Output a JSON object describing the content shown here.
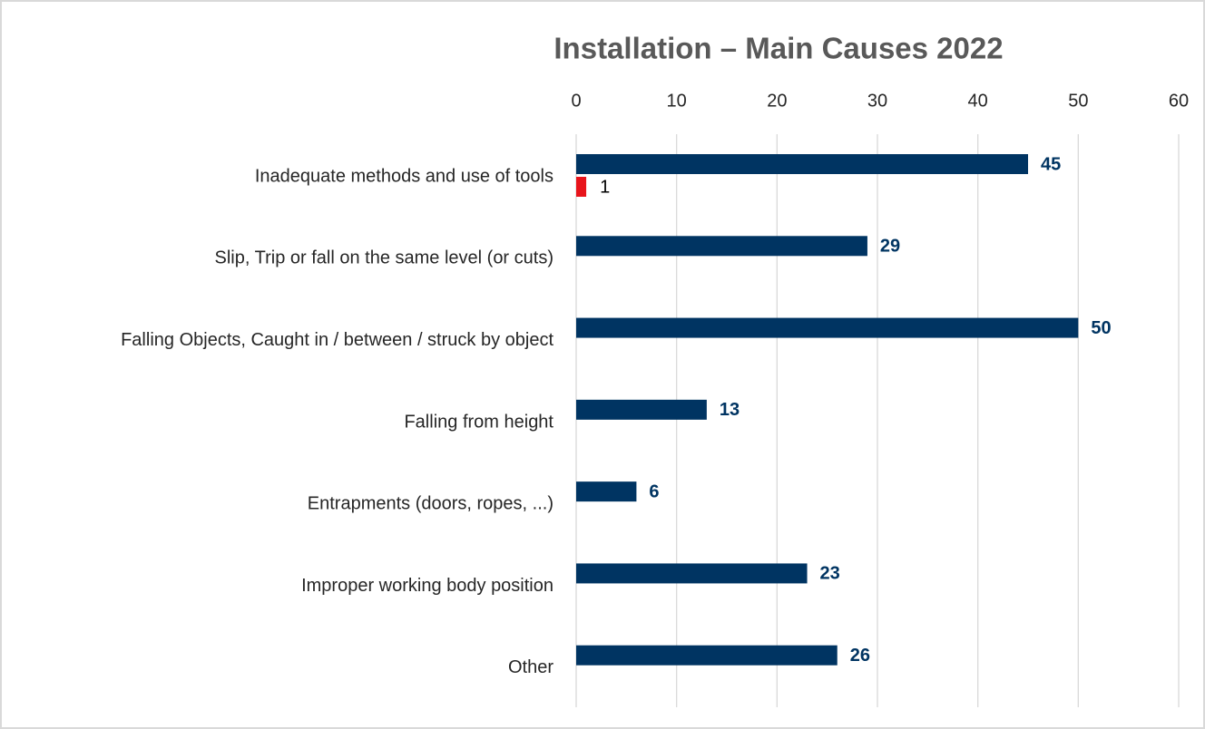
{
  "chart_data": {
    "type": "hbar",
    "title": "Installation – Main Causes 2022",
    "categories": [
      "Inadequate methods and use of tools",
      "Slip, Trip or fall on the same level (or cuts)",
      "Falling Objects, Caught in / between / struck by object",
      "Falling from height",
      "Entrapments (doors, ropes, ...)",
      "Improper working body position",
      "Other"
    ],
    "series": [
      {
        "color": "#003462",
        "values": [
          45,
          29,
          50,
          13,
          6,
          23,
          26
        ]
      },
      {
        "color": "#e8141b",
        "values": [
          1,
          null,
          null,
          null,
          null,
          null,
          null
        ]
      }
    ],
    "xlim": [
      0,
      60
    ],
    "xticks": [
      0,
      10,
      20,
      30,
      40,
      50,
      60
    ],
    "grid": true
  }
}
